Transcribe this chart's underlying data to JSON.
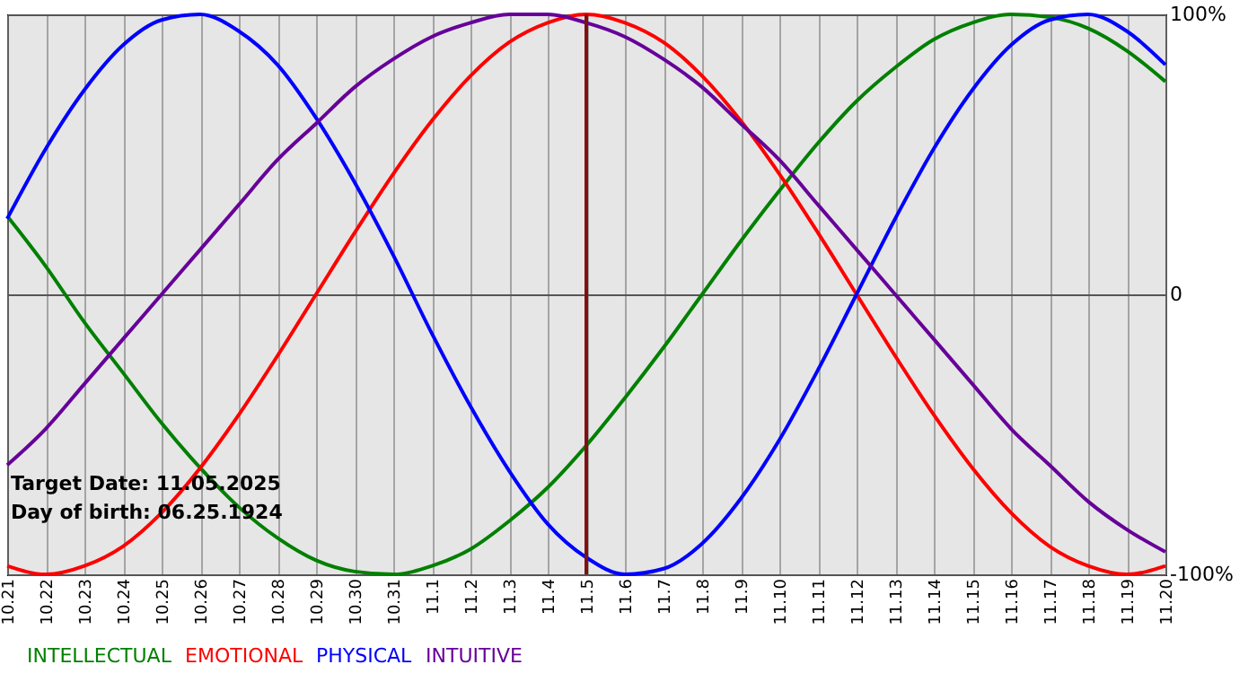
{
  "chart_data": {
    "type": "line",
    "categories": [
      "10.21",
      "10.22",
      "10.23",
      "10.24",
      "10.25",
      "10.26",
      "10.27",
      "10.28",
      "10.29",
      "10.30",
      "10.31",
      "11.1",
      "11.2",
      "11.3",
      "11.4",
      "11.5",
      "11.6",
      "11.7",
      "11.8",
      "11.9",
      "11.10",
      "11.11",
      "11.12",
      "11.13",
      "11.14",
      "11.15",
      "11.16",
      "11.17",
      "11.18",
      "11.19",
      "11.20"
    ],
    "series": [
      {
        "name": "INTELLECTUAL",
        "color": "#008000",
        "values": [
          28,
          10,
          -10,
          -28,
          -46,
          -62,
          -76,
          -87,
          -95,
          -99,
          -100,
          -97,
          -91,
          -81,
          -69,
          -54,
          -37,
          -19,
          0,
          19,
          37,
          54,
          69,
          81,
          91,
          97,
          100,
          99,
          95,
          87,
          76
        ]
      },
      {
        "name": "EMOTIONAL",
        "color": "#ff0000",
        "values": [
          -97,
          -100,
          -97,
          -90,
          -78,
          -62,
          -43,
          -22,
          0,
          22,
          43,
          62,
          78,
          90,
          97,
          100,
          97,
          90,
          78,
          62,
          43,
          22,
          0,
          -22,
          -43,
          -62,
          -78,
          -90,
          -97,
          -100,
          -97
        ]
      },
      {
        "name": "PHYSICAL",
        "color": "#0000ff",
        "values": [
          27,
          52,
          73,
          89,
          98,
          100,
          94,
          82,
          63,
          40,
          14,
          -14,
          -40,
          -63,
          -82,
          -94,
          -100,
          -98,
          -89,
          -73,
          -52,
          -27,
          0,
          27,
          52,
          73,
          89,
          98,
          100,
          94,
          82
        ]
      },
      {
        "name": "INTUITIVE",
        "color": "#660099",
        "values": [
          -61,
          -48,
          -32,
          -16,
          0,
          16,
          32,
          48,
          61,
          74,
          84,
          92,
          97,
          100,
          100,
          97,
          92,
          84,
          74,
          61,
          48,
          32,
          16,
          0,
          -16,
          -32,
          -48,
          -61,
          -74,
          -84,
          -92
        ]
      }
    ],
    "ylim": [
      -100,
      100
    ],
    "yticks": [
      {
        "value": 100,
        "label": "100%"
      },
      0,
      {
        "value": -100,
        "label": "-100%"
      }
    ],
    "grid": true,
    "legend": "bottom left",
    "ref_lines": [
      {
        "axis": "x",
        "value": "11.5",
        "color": "#801010"
      }
    ],
    "annotations": [
      "Target Date: 11.05.2025",
      "Day of birth: 06.25.1924"
    ]
  }
}
